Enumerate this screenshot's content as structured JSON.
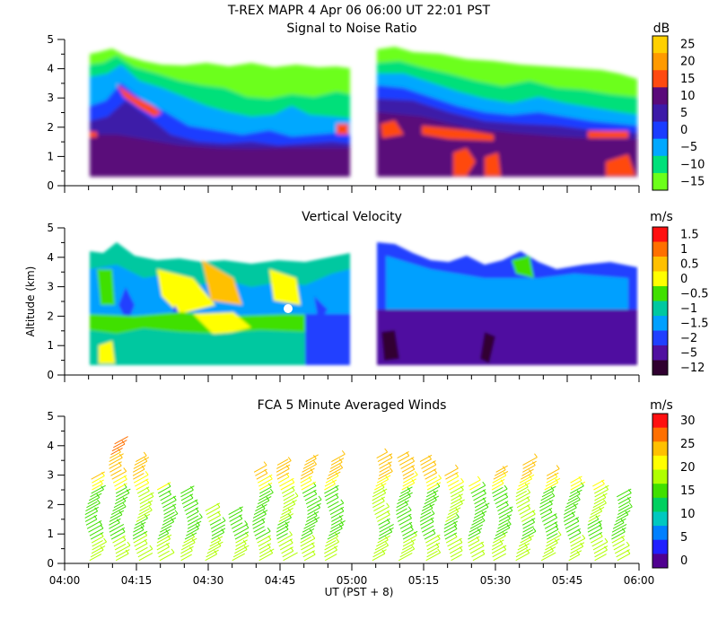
{
  "header": {
    "title": "T-REX  MAPR  4 Apr 06  06:00 UT  22:01  PST"
  },
  "x_axis": {
    "label": "UT  (PST + 8)",
    "ticks": [
      "04:00",
      "04:15",
      "04:30",
      "04:45",
      "05:00",
      "05:15",
      "05:30",
      "05:45",
      "06:00"
    ],
    "range_minutes": [
      0,
      120
    ]
  },
  "y_axis": {
    "label": "Altitude (km)",
    "ticks": [
      "0",
      "1",
      "2",
      "3",
      "4",
      "5"
    ],
    "range": [
      0,
      5
    ]
  },
  "panels": [
    {
      "title": "Signal to Noise Ratio",
      "unit": "dB",
      "colorbar": {
        "labels": [
          "25",
          "20",
          "15",
          "10",
          "5",
          "0",
          "−5",
          "−10",
          "−15"
        ],
        "colors": [
          "#ffd000",
          "#ff9a00",
          "#ff4a10",
          "#5a0a7a",
          "#3c1aa8",
          "#1a3cff",
          "#00a8ff",
          "#00e07a",
          "#6cff1a"
        ]
      }
    },
    {
      "title": "Vertical Velocity",
      "unit": "m/s",
      "colorbar": {
        "labels": [
          "1.5",
          "1",
          "0.5",
          "0",
          "−0.5",
          "−1",
          "−1.5",
          "−2",
          "−5",
          "−12"
        ],
        "colors": [
          "#ff1010",
          "#ff7000",
          "#ffc000",
          "#ffff00",
          "#40e000",
          "#00c8a0",
          "#00a0ff",
          "#2040ff",
          "#5010a0",
          "#300030"
        ]
      }
    },
    {
      "title": "FCA 5 Minute Averaged Winds",
      "unit": "m/s",
      "colorbar": {
        "labels": [
          "30",
          "25",
          "20",
          "15",
          "10",
          "5",
          "0"
        ],
        "colors": [
          "#ff1010",
          "#ff7000",
          "#ffc000",
          "#ffff00",
          "#b0ff00",
          "#40e000",
          "#00d060",
          "#00c8c0",
          "#0080ff",
          "#2020ff",
          "#500090"
        ]
      }
    }
  ],
  "chart_data": [
    {
      "type": "heatmap",
      "title": "Signal to Noise Ratio",
      "unit": "dB",
      "x_range_minutes": [
        0,
        120
      ],
      "ylim": [
        0,
        5
      ],
      "gap_minutes": [
        60,
        65
      ]
    },
    {
      "type": "heatmap",
      "title": "Vertical Velocity",
      "unit": "m/s",
      "x_range_minutes": [
        0,
        120
      ],
      "ylim": [
        0,
        5
      ],
      "gap_minutes": [
        60,
        65
      ]
    },
    {
      "type": "scatter",
      "title": "FCA 5 Minute Averaged Winds",
      "unit": "m/s",
      "x_minutes": [
        5,
        10,
        15,
        20,
        25,
        30,
        35,
        40,
        45,
        50,
        55,
        65,
        70,
        75,
        80,
        85,
        90,
        95,
        100,
        105,
        110,
        115
      ],
      "top_km": [
        2.9,
        4.1,
        3.5,
        2.6,
        2.4,
        1.9,
        1.7,
        3.2,
        3.4,
        3.5,
        3.5,
        3.6,
        3.6,
        3.5,
        3.1,
        2.7,
        3.2,
        3.4,
        3.0,
        2.8,
        2.7,
        2.3
      ]
    }
  ]
}
